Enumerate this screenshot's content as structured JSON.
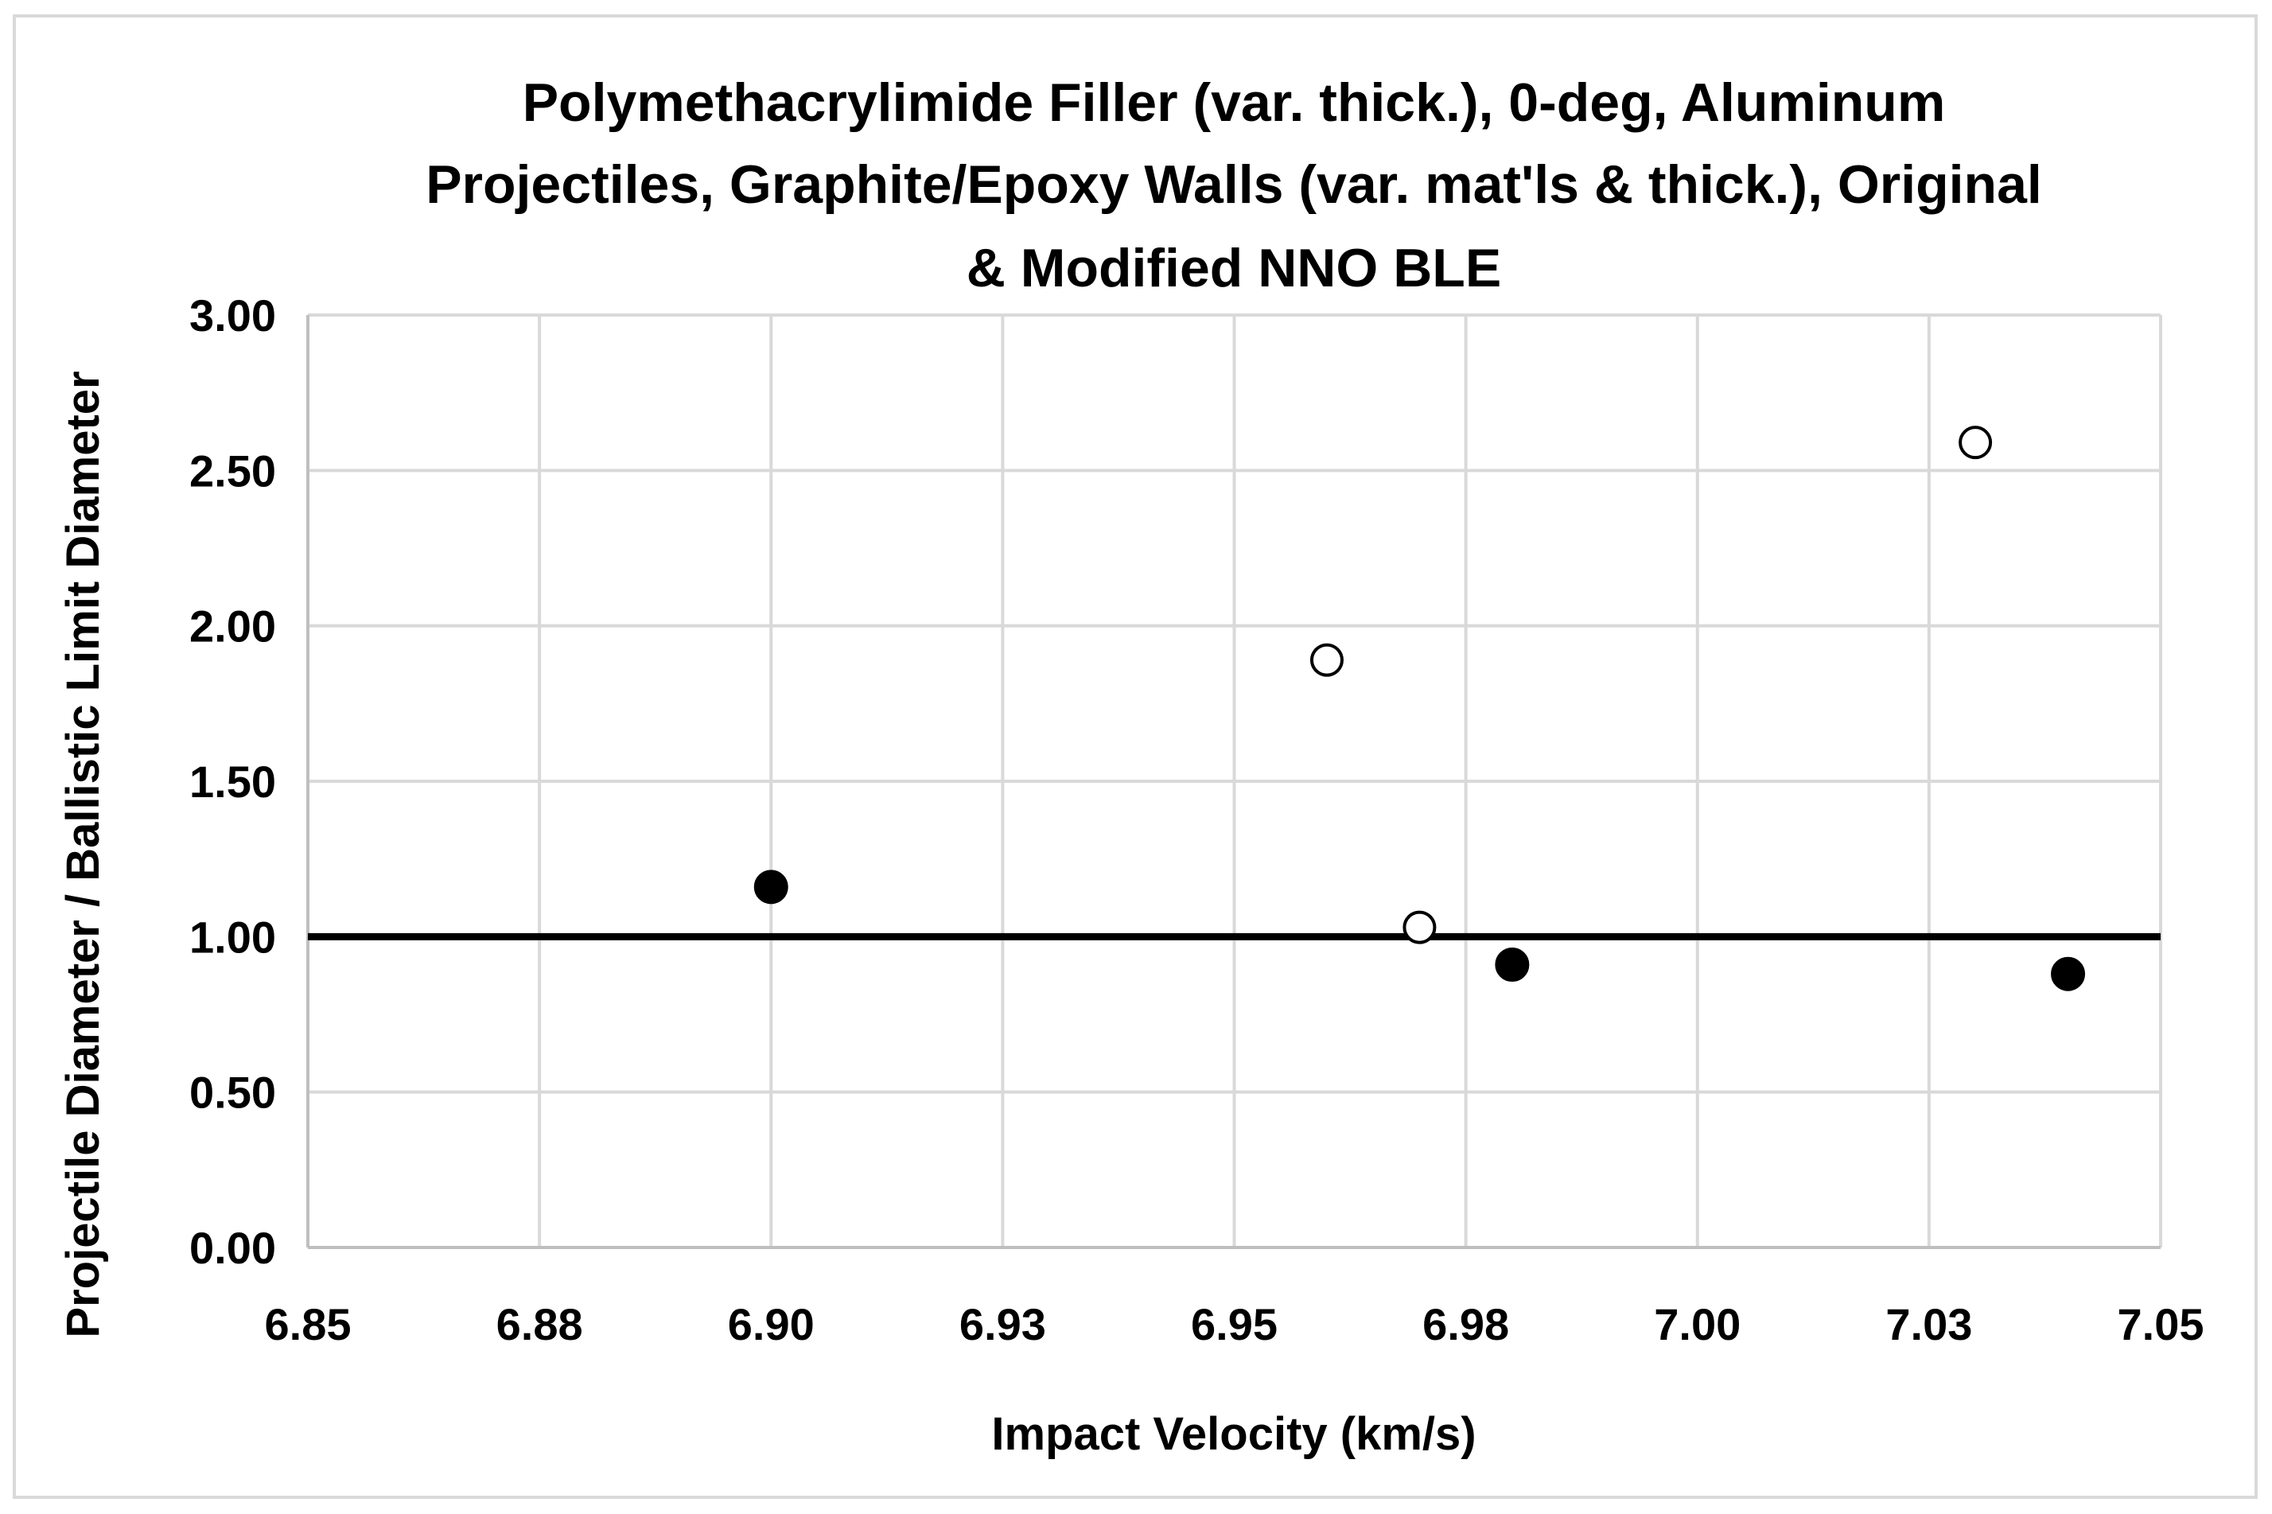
{
  "chart_data": {
    "type": "scatter",
    "title_lines": [
      "Polymethacrylimide Filler (var. thick.), 0-deg, Aluminum",
      "Projectiles, Graphite/Epoxy Walls (var. mat'ls & thick.), Original",
      "& Modified NNO BLE"
    ],
    "xlabel": "Impact Velocity (km/s)",
    "ylabel": "Projectile Diameter / Ballistic Limit Diameter",
    "xlim": [
      6.85,
      7.05
    ],
    "ylim": [
      0,
      3
    ],
    "x_ticks": [
      6.85,
      6.875,
      6.9,
      6.925,
      6.95,
      6.975,
      7.0,
      7.025,
      7.05
    ],
    "x_tick_labels": [
      "6.85",
      "6.88",
      "6.90",
      "6.93",
      "6.95",
      "6.98",
      "7.00",
      "7.03",
      "7.05"
    ],
    "y_ticks": [
      0,
      0.5,
      1.0,
      1.5,
      2.0,
      2.5,
      3.0
    ],
    "y_tick_labels": [
      "0.00",
      "0.50",
      "1.00",
      "1.50",
      "2.00",
      "2.50",
      "3.00"
    ],
    "grid": true,
    "reference_line": {
      "y": 1.0,
      "color": "#000000"
    },
    "series": [
      {
        "name": "filled",
        "marker": "filled-circle",
        "color": "#000000",
        "x": [
          6.9,
          6.98,
          7.04
        ],
        "y": [
          1.16,
          0.91,
          0.88
        ]
      },
      {
        "name": "open",
        "marker": "open-circle",
        "color": "#000000",
        "x": [
          6.96,
          6.97,
          7.03
        ],
        "y": [
          1.89,
          1.03,
          2.59
        ]
      }
    ]
  },
  "colors": {
    "grid": "#d9d9d9",
    "axis": "#bfbfbf",
    "marker": "#000000",
    "background": "#ffffff"
  }
}
